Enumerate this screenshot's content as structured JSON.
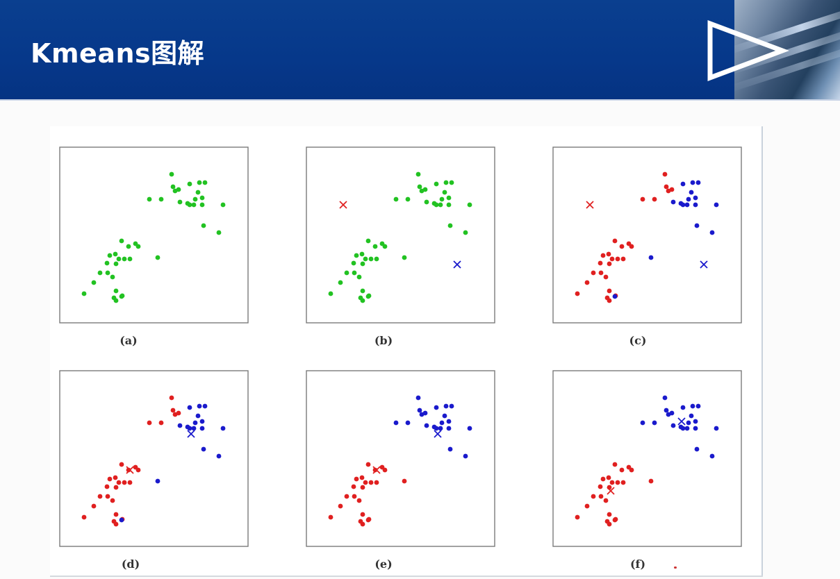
{
  "header": {
    "title": "Kmeans图解",
    "icon": "play-triangle-icon"
  },
  "colors": {
    "header": "#06388a",
    "green": "#22c222",
    "red": "#e02020",
    "blue": "#1a1acc"
  },
  "panels": [
    {
      "caption": "(a)"
    },
    {
      "caption": "(b)"
    },
    {
      "caption": "(c)"
    },
    {
      "caption": "(d)"
    },
    {
      "caption": "(e)"
    },
    {
      "caption": "(f)"
    }
  ]
}
